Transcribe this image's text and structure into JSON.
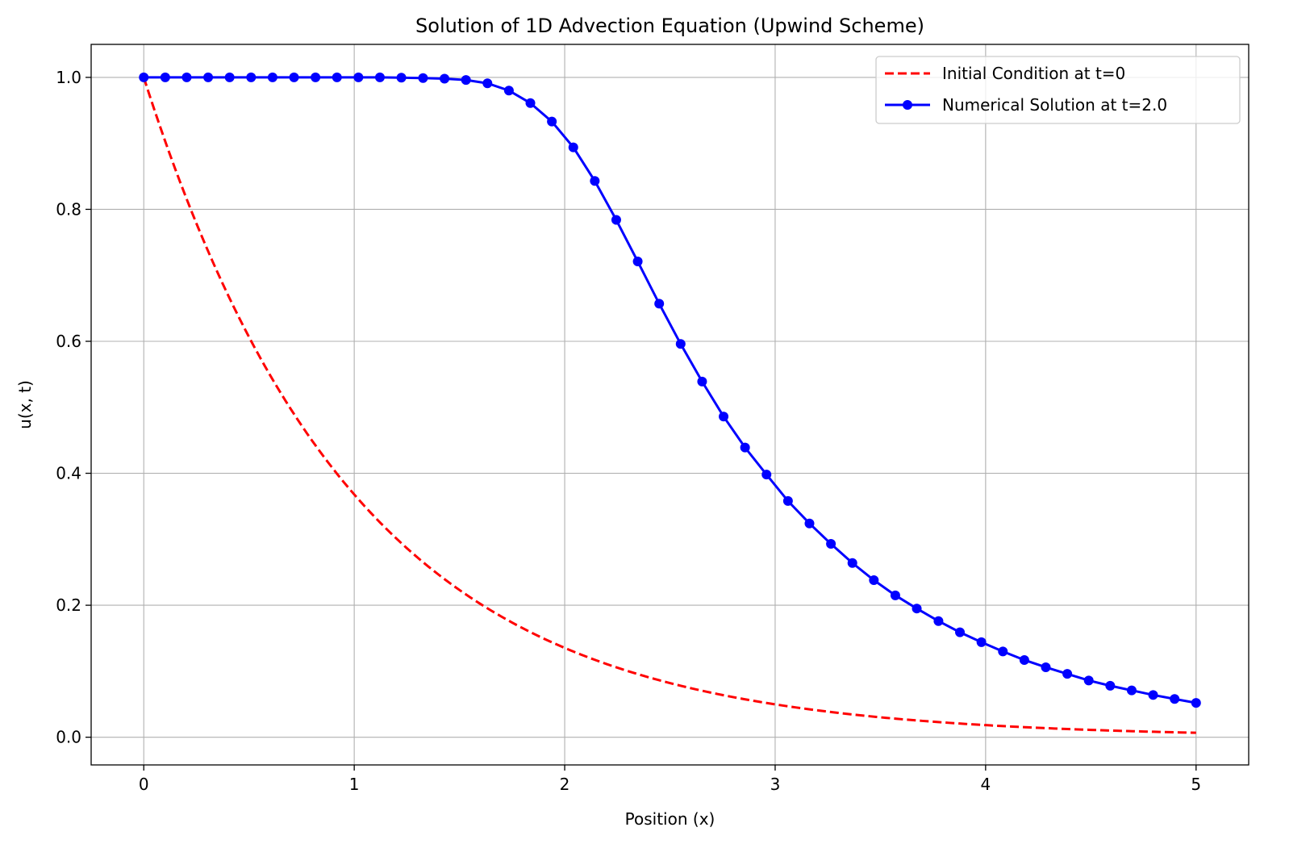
{
  "chart_data": {
    "type": "line",
    "title": "Solution of 1D Advection Equation (Upwind Scheme)",
    "xlabel": "Position (x)",
    "ylabel": "u(x, t)",
    "xlim": [
      -0.25,
      5.25
    ],
    "ylim": [
      -0.042,
      1.05
    ],
    "xticks": [
      0,
      1,
      2,
      3,
      4,
      5
    ],
    "yticks": [
      0.0,
      0.2,
      0.4,
      0.6,
      0.8,
      1.0
    ],
    "xtick_labels": [
      "0",
      "1",
      "2",
      "3",
      "4",
      "5"
    ],
    "ytick_labels": [
      "0.0",
      "0.2",
      "0.4",
      "0.6",
      "0.8",
      "1.0"
    ],
    "grid": true,
    "legend_position": "top-right",
    "series": [
      {
        "name": "Initial Condition at t=0",
        "color": "#ff0000",
        "style": "dashed",
        "marker": "none",
        "function": "exp(-x)",
        "x": [
          0.0,
          0.25,
          0.5,
          0.75,
          1.0,
          1.25,
          1.5,
          1.75,
          2.0,
          2.25,
          2.5,
          2.75,
          3.0,
          3.25,
          3.5,
          3.75,
          4.0,
          4.25,
          4.5,
          4.75,
          5.0
        ],
        "values": [
          1.0,
          0.779,
          0.607,
          0.472,
          0.368,
          0.287,
          0.223,
          0.174,
          0.135,
          0.105,
          0.082,
          0.064,
          0.05,
          0.039,
          0.03,
          0.024,
          0.018,
          0.014,
          0.011,
          0.009,
          0.007
        ]
      },
      {
        "name": "Numerical Solution at t=2.0",
        "color": "#0000ff",
        "style": "solid",
        "marker": "circle",
        "x": [
          0.0,
          0.102,
          0.204,
          0.306,
          0.408,
          0.51,
          0.612,
          0.714,
          0.816,
          0.918,
          1.02,
          1.122,
          1.224,
          1.327,
          1.429,
          1.531,
          1.633,
          1.735,
          1.837,
          1.939,
          2.041,
          2.143,
          2.245,
          2.347,
          2.449,
          2.551,
          2.653,
          2.755,
          2.857,
          2.959,
          3.061,
          3.163,
          3.265,
          3.367,
          3.469,
          3.571,
          3.673,
          3.776,
          3.878,
          3.98,
          4.082,
          4.184,
          4.286,
          4.388,
          4.49,
          4.592,
          4.694,
          4.796,
          4.898,
          5.0
        ],
        "values": [
          1.0,
          1.0,
          1.0,
          1.0,
          1.0,
          1.0,
          1.0,
          1.0,
          1.0,
          1.0,
          1.0,
          1.0,
          0.9995,
          0.999,
          0.998,
          0.996,
          0.991,
          0.98,
          0.961,
          0.933,
          0.894,
          0.843,
          0.784,
          0.721,
          0.657,
          0.596,
          0.539,
          0.486,
          0.439,
          0.398,
          0.358,
          0.324,
          0.293,
          0.264,
          0.238,
          0.215,
          0.195,
          0.176,
          0.159,
          0.144,
          0.13,
          0.117,
          0.106,
          0.096,
          0.086,
          0.078,
          0.071,
          0.064,
          0.058,
          0.052
        ]
      }
    ]
  }
}
